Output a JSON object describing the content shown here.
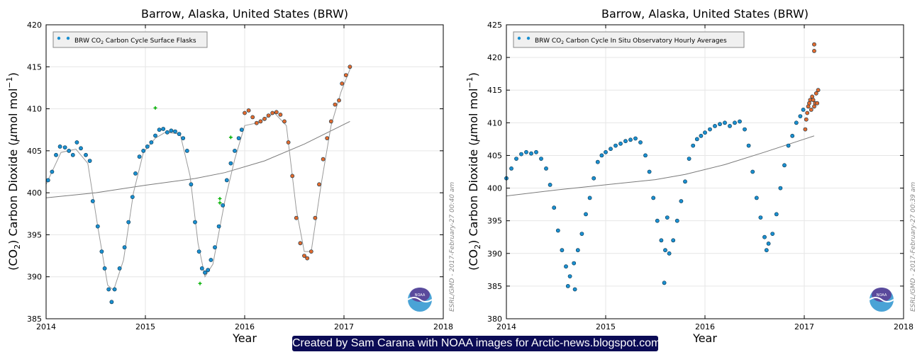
{
  "credit": "Created by Sam Carana with NOAA images for Arctic-news.blogspot.com",
  "colors": {
    "blue_point": "#1a8fd0",
    "orange_point": "#e06a2e",
    "green_point": "#00b000",
    "trend": "#7a7a7a",
    "fit": "#9a9a9a",
    "background": "#ffffff"
  },
  "chart_data": [
    {
      "type": "scatter",
      "title": "Barrow, Alaska, United States (BRW)",
      "xlabel": "Year",
      "ylabel_parts": [
        "(CO",
        "2",
        ") Carbon Dioxide (",
        "μ",
        "mol mol",
        "−1",
        ")"
      ],
      "xlim": [
        2014,
        2018
      ],
      "ylim": [
        385,
        420
      ],
      "xticks": [
        "2014",
        "2015",
        "2016",
        "2017",
        "2018"
      ],
      "yticks": [
        "385",
        "390",
        "395",
        "400",
        "405",
        "410",
        "415",
        "420"
      ],
      "legend": {
        "pre": "BRW CO",
        "sub": "2",
        "post": " Carbon Cycle Surface Flasks",
        "placement": "top-left"
      },
      "watermark": "ESRL/GMD - 2017-February-27 00:40 am",
      "logo_text": "NOAA",
      "series": [
        {
          "name": "Surface flasks (finalized)",
          "marker": "circle",
          "color": "#1a8fd0",
          "points": [
            [
              2014.02,
              401.5
            ],
            [
              2014.06,
              402.5
            ],
            [
              2014.1,
              404.5
            ],
            [
              2014.14,
              405.5
            ],
            [
              2014.19,
              405.4
            ],
            [
              2014.23,
              405.0
            ],
            [
              2014.27,
              404.5
            ],
            [
              2014.31,
              406.0
            ],
            [
              2014.35,
              405.3
            ],
            [
              2014.4,
              404.5
            ],
            [
              2014.44,
              403.8
            ],
            [
              2014.47,
              399.0
            ],
            [
              2014.52,
              396.0
            ],
            [
              2014.56,
              393.0
            ],
            [
              2014.59,
              391.0
            ],
            [
              2014.63,
              388.5
            ],
            [
              2014.66,
              387.0
            ],
            [
              2014.69,
              388.5
            ],
            [
              2014.74,
              391.0
            ],
            [
              2014.79,
              393.5
            ],
            [
              2014.83,
              396.5
            ],
            [
              2014.87,
              399.5
            ],
            [
              2014.9,
              402.3
            ],
            [
              2014.94,
              404.3
            ],
            [
              2014.98,
              405.0
            ],
            [
              2015.02,
              405.5
            ],
            [
              2015.06,
              406.0
            ],
            [
              2015.1,
              406.8
            ],
            [
              2015.14,
              407.5
            ],
            [
              2015.18,
              407.6
            ],
            [
              2015.22,
              407.2
            ],
            [
              2015.26,
              407.4
            ],
            [
              2015.3,
              407.3
            ],
            [
              2015.34,
              407.0
            ],
            [
              2015.38,
              406.5
            ],
            [
              2015.42,
              405.0
            ],
            [
              2015.46,
              401.0
            ],
            [
              2015.5,
              396.5
            ],
            [
              2015.54,
              393.0
            ],
            [
              2015.57,
              391.0
            ],
            [
              2015.6,
              390.5
            ],
            [
              2015.63,
              390.8
            ],
            [
              2015.66,
              392.0
            ],
            [
              2015.7,
              393.5
            ],
            [
              2015.74,
              396.0
            ],
            [
              2015.78,
              398.5
            ],
            [
              2015.82,
              401.5
            ],
            [
              2015.86,
              403.5
            ],
            [
              2015.9,
              405.0
            ],
            [
              2015.94,
              406.5
            ],
            [
              2015.97,
              407.5
            ]
          ]
        },
        {
          "name": "Surface flasks (preliminary)",
          "marker": "circle",
          "color": "#e06a2e",
          "points": [
            [
              2016.0,
              409.5
            ],
            [
              2016.04,
              409.8
            ],
            [
              2016.08,
              409.0
            ],
            [
              2016.12,
              408.3
            ],
            [
              2016.16,
              408.5
            ],
            [
              2016.2,
              408.8
            ],
            [
              2016.24,
              409.2
            ],
            [
              2016.28,
              409.5
            ],
            [
              2016.32,
              409.6
            ],
            [
              2016.36,
              409.3
            ],
            [
              2016.4,
              408.5
            ],
            [
              2016.44,
              406.0
            ],
            [
              2016.48,
              402.0
            ],
            [
              2016.52,
              397.0
            ],
            [
              2016.56,
              394.0
            ],
            [
              2016.6,
              392.5
            ],
            [
              2016.63,
              392.2
            ],
            [
              2016.67,
              393.0
            ],
            [
              2016.71,
              397.0
            ],
            [
              2016.75,
              401.0
            ],
            [
              2016.79,
              404.0
            ],
            [
              2016.83,
              406.5
            ],
            [
              2016.87,
              408.5
            ],
            [
              2016.91,
              410.5
            ],
            [
              2016.95,
              411.0
            ],
            [
              2016.98,
              413.0
            ],
            [
              2017.02,
              414.0
            ],
            [
              2017.06,
              415.0
            ]
          ]
        },
        {
          "name": "Surface flasks (flagged)",
          "marker": "plus",
          "color": "#00b000",
          "points": [
            [
              2015.1,
              410.1
            ],
            [
              2015.55,
              389.2
            ],
            [
              2015.75,
              399.3
            ],
            [
              2015.75,
              398.8
            ],
            [
              2015.86,
              406.6
            ]
          ]
        },
        {
          "name": "Long-term trend",
          "marker": "line",
          "color": "#7a7a7a",
          "points": [
            [
              2014.0,
              399.4
            ],
            [
              2014.5,
              400.0
            ],
            [
              2015.0,
              400.9
            ],
            [
              2015.5,
              401.7
            ],
            [
              2015.8,
              402.4
            ],
            [
              2016.2,
              403.8
            ],
            [
              2016.6,
              405.8
            ],
            [
              2017.06,
              408.5
            ]
          ]
        },
        {
          "name": "Smoothed curve",
          "marker": "line",
          "color": "#9a9a9a",
          "points": [
            [
              2014.0,
              401.0
            ],
            [
              2014.15,
              404.8
            ],
            [
              2014.3,
              405.2
            ],
            [
              2014.42,
              403.5
            ],
            [
              2014.52,
              396.0
            ],
            [
              2014.62,
              389.0
            ],
            [
              2014.68,
              388.4
            ],
            [
              2014.78,
              392.0
            ],
            [
              2014.88,
              400.0
            ],
            [
              2014.98,
              404.8
            ],
            [
              2015.1,
              406.5
            ],
            [
              2015.2,
              407.2
            ],
            [
              2015.35,
              407.0
            ],
            [
              2015.45,
              402.0
            ],
            [
              2015.53,
              394.0
            ],
            [
              2015.6,
              390.0
            ],
            [
              2015.68,
              391.5
            ],
            [
              2015.8,
              399.0
            ],
            [
              2015.9,
              404.0
            ],
            [
              2016.0,
              408.0
            ],
            [
              2016.12,
              408.3
            ],
            [
              2016.3,
              409.5
            ],
            [
              2016.42,
              408.0
            ],
            [
              2016.52,
              398.0
            ],
            [
              2016.6,
              393.0
            ],
            [
              2016.67,
              393.0
            ],
            [
              2016.77,
              401.0
            ],
            [
              2016.87,
              408.0
            ],
            [
              2016.97,
              412.0
            ],
            [
              2017.07,
              415.0
            ]
          ]
        }
      ]
    },
    {
      "type": "scatter",
      "title": "Barrow, Alaska, United States (BRW)",
      "xlabel": "Year",
      "ylabel_parts": [
        "(CO",
        "2",
        ") Carbon Dioxide (",
        "μ",
        "mol mol",
        "−1",
        ")"
      ],
      "xlim": [
        2014,
        2018
      ],
      "ylim": [
        380,
        425
      ],
      "xticks": [
        "2014",
        "2015",
        "2016",
        "2017",
        "2018"
      ],
      "yticks": [
        "380",
        "385",
        "390",
        "395",
        "400",
        "405",
        "410",
        "415",
        "420",
        "425"
      ],
      "legend": {
        "pre": "BRW CO",
        "sub": "2",
        "post": " Carbon Cycle In Situ Observatory Hourly Averages",
        "placement": "top-left"
      },
      "watermark": "ESRL/GMD - 2017-February-27 00:39 am",
      "logo_text": "NOAA",
      "series": [
        {
          "name": "Hourly averages (finalized)",
          "marker": "circle",
          "color": "#1a8fd0",
          "points": [
            [
              2014.0,
              401.5
            ],
            [
              2014.05,
              403.0
            ],
            [
              2014.1,
              404.5
            ],
            [
              2014.15,
              405.2
            ],
            [
              2014.2,
              405.5
            ],
            [
              2014.25,
              405.3
            ],
            [
              2014.3,
              405.5
            ],
            [
              2014.35,
              404.5
            ],
            [
              2014.4,
              403.0
            ],
            [
              2014.44,
              400.5
            ],
            [
              2014.48,
              397.0
            ],
            [
              2014.52,
              393.5
            ],
            [
              2014.56,
              390.5
            ],
            [
              2014.6,
              388.0
            ],
            [
              2014.64,
              386.5
            ],
            [
              2014.68,
              388.5
            ],
            [
              2014.72,
              390.5
            ],
            [
              2014.76,
              393.0
            ],
            [
              2014.8,
              396.0
            ],
            [
              2014.84,
              398.5
            ],
            [
              2014.88,
              401.5
            ],
            [
              2014.92,
              404.0
            ],
            [
              2014.96,
              405.0
            ],
            [
              2015.0,
              405.5
            ],
            [
              2015.05,
              406.0
            ],
            [
              2015.1,
              406.5
            ],
            [
              2015.15,
              406.8
            ],
            [
              2015.2,
              407.2
            ],
            [
              2015.25,
              407.4
            ],
            [
              2015.3,
              407.6
            ],
            [
              2015.35,
              407.0
            ],
            [
              2015.4,
              405.0
            ],
            [
              2015.44,
              402.5
            ],
            [
              2015.48,
              398.5
            ],
            [
              2015.52,
              395.0
            ],
            [
              2015.56,
              392.0
            ],
            [
              2015.6,
              390.5
            ],
            [
              2015.64,
              390.0
            ],
            [
              2015.68,
              392.0
            ],
            [
              2015.72,
              395.0
            ],
            [
              2015.76,
              398.0
            ],
            [
              2015.8,
              401.0
            ],
            [
              2015.84,
              404.5
            ],
            [
              2015.88,
              406.5
            ],
            [
              2015.92,
              407.5
            ],
            [
              2015.96,
              408.0
            ],
            [
              2016.0,
              408.5
            ],
            [
              2016.05,
              409.0
            ],
            [
              2016.1,
              409.5
            ],
            [
              2016.15,
              409.8
            ],
            [
              2016.2,
              410.0
            ],
            [
              2016.25,
              409.5
            ],
            [
              2016.3,
              410.0
            ],
            [
              2016.35,
              410.2
            ],
            [
              2016.4,
              409.0
            ],
            [
              2016.44,
              406.5
            ],
            [
              2016.48,
              402.5
            ],
            [
              2016.52,
              398.5
            ],
            [
              2016.56,
              395.5
            ],
            [
              2016.6,
              392.5
            ],
            [
              2016.64,
              391.5
            ],
            [
              2016.68,
              393.0
            ],
            [
              2016.72,
              396.0
            ],
            [
              2016.76,
              400.0
            ],
            [
              2016.8,
              403.5
            ],
            [
              2016.84,
              406.5
            ],
            [
              2016.88,
              408.0
            ],
            [
              2016.92,
              410.0
            ],
            [
              2016.96,
              411.0
            ],
            [
              2016.99,
              412.0
            ],
            [
              2014.62,
              385.0
            ],
            [
              2014.69,
              384.5
            ],
            [
              2015.59,
              385.5
            ],
            [
              2015.62,
              395.5
            ],
            [
              2016.62,
              390.5
            ]
          ]
        },
        {
          "name": "Hourly averages (preliminary)",
          "marker": "circle",
          "color": "#e06a2e",
          "points": [
            [
              2017.01,
              409.0
            ],
            [
              2017.02,
              410.5
            ],
            [
              2017.03,
              411.5
            ],
            [
              2017.04,
              412.5
            ],
            [
              2017.05,
              413.0
            ],
            [
              2017.06,
              413.5
            ],
            [
              2017.07,
              412.0
            ],
            [
              2017.08,
              414.0
            ],
            [
              2017.09,
              413.5
            ],
            [
              2017.1,
              412.5
            ],
            [
              2017.11,
              413.0
            ],
            [
              2017.12,
              414.5
            ],
            [
              2017.13,
              413.0
            ],
            [
              2017.14,
              415.0
            ],
            [
              2017.1,
              421.0
            ],
            [
              2017.1,
              422.0
            ]
          ]
        },
        {
          "name": "Long-term trend",
          "marker": "line",
          "color": "#7a7a7a",
          "points": [
            [
              2014.0,
              398.8
            ],
            [
              2014.5,
              399.7
            ],
            [
              2015.0,
              400.5
            ],
            [
              2015.5,
              401.3
            ],
            [
              2015.8,
              402.1
            ],
            [
              2016.2,
              403.6
            ],
            [
              2016.6,
              405.5
            ],
            [
              2017.1,
              408.0
            ]
          ]
        }
      ]
    }
  ]
}
